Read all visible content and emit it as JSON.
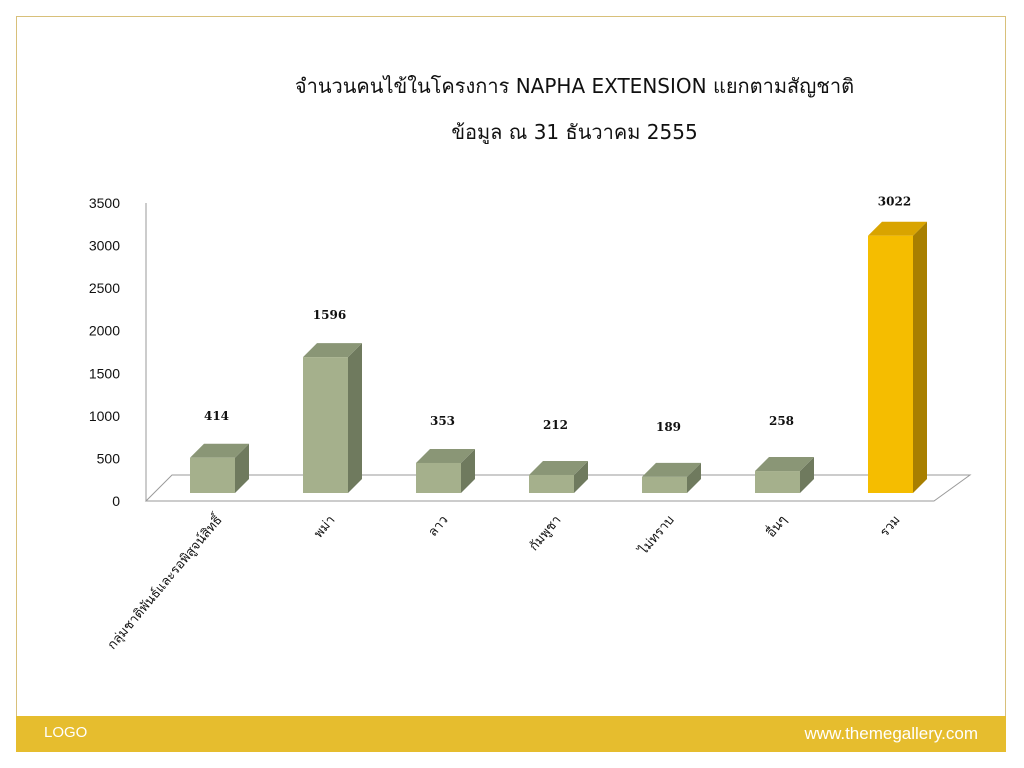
{
  "chart_data": {
    "type": "bar",
    "title": "จำนวนคนไข้ในโครงการ NAPHA EXTENSION แยกตามสัญชาติ",
    "subtitle": "ข้อมูล ณ 31 ธันวาคม 2555",
    "categories": [
      "กลุ่มชาติพันธ์และรอพิสูจน์สิทธิ์",
      "พม่า",
      "ลาว",
      "กัมพูชา",
      "ไม่ทราบ",
      "อื่นๆ",
      "รวม"
    ],
    "values": [
      414,
      1596,
      353,
      212,
      189,
      258,
      3022
    ],
    "ylim": [
      0,
      3500
    ],
    "yticks": [
      0,
      500,
      1000,
      1500,
      2000,
      2500,
      3000,
      3500
    ],
    "grid": false,
    "legend": "none",
    "colors": {
      "bar": "#a5b08c",
      "bar_side": "#6f7a5e",
      "bar_top": "#8a9676",
      "highlight": "#f5bd00",
      "highlight_side": "#a87f00",
      "highlight_top": "#d9a400"
    },
    "highlight_index": 6
  },
  "footer": {
    "logo": "LOGO",
    "site": "www.themegallery.com",
    "bar_color": "#e6bd2e"
  }
}
